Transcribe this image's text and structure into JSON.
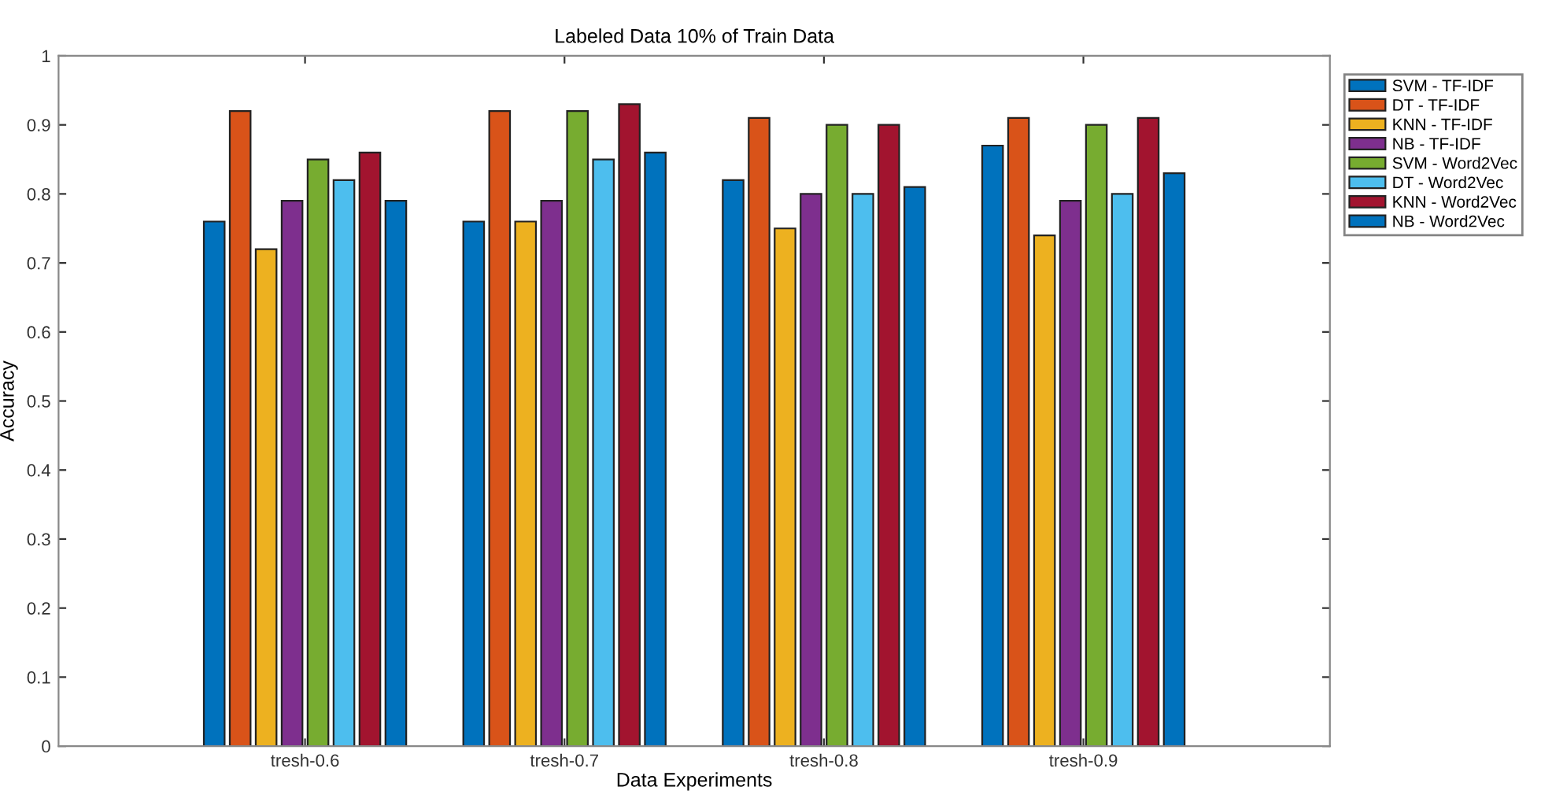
{
  "chart_data": {
    "type": "bar",
    "title": "Labeled Data 10% of Train Data",
    "xlabel": "Data Experiments",
    "ylabel": "Accuracy",
    "categories": [
      "tresh-0.6",
      "tresh-0.7",
      "tresh-0.8",
      "tresh-0.9"
    ],
    "series": [
      {
        "name": "SVM - TF-IDF",
        "color": "#0072bd",
        "values": [
          0.76,
          0.76,
          0.82,
          0.87
        ]
      },
      {
        "name": "DT - TF-IDF",
        "color": "#d95319",
        "values": [
          0.92,
          0.92,
          0.91,
          0.91
        ]
      },
      {
        "name": "KNN - TF-IDF",
        "color": "#edb120",
        "values": [
          0.72,
          0.76,
          0.75,
          0.74
        ]
      },
      {
        "name": "NB - TF-IDF",
        "color": "#7e2f8e",
        "values": [
          0.79,
          0.79,
          0.8,
          0.79
        ]
      },
      {
        "name": "SVM - Word2Vec",
        "color": "#77ac30",
        "values": [
          0.85,
          0.92,
          0.9,
          0.9
        ]
      },
      {
        "name": "DT - Word2Vec",
        "color": "#4dbeee",
        "values": [
          0.82,
          0.85,
          0.8,
          0.8
        ]
      },
      {
        "name": "KNN - Word2Vec",
        "color": "#a2142f",
        "values": [
          0.86,
          0.93,
          0.9,
          0.91
        ]
      },
      {
        "name": "NB - Word2Vec",
        "color": "#0072bd",
        "values": [
          0.79,
          0.86,
          0.81,
          0.83
        ]
      }
    ],
    "ylim": [
      0,
      1
    ],
    "yticks": [
      0,
      0.1,
      0.2,
      0.3,
      0.4,
      0.5,
      0.6,
      0.7,
      0.8,
      0.9,
      1
    ],
    "grid": false,
    "legend": "top right"
  }
}
